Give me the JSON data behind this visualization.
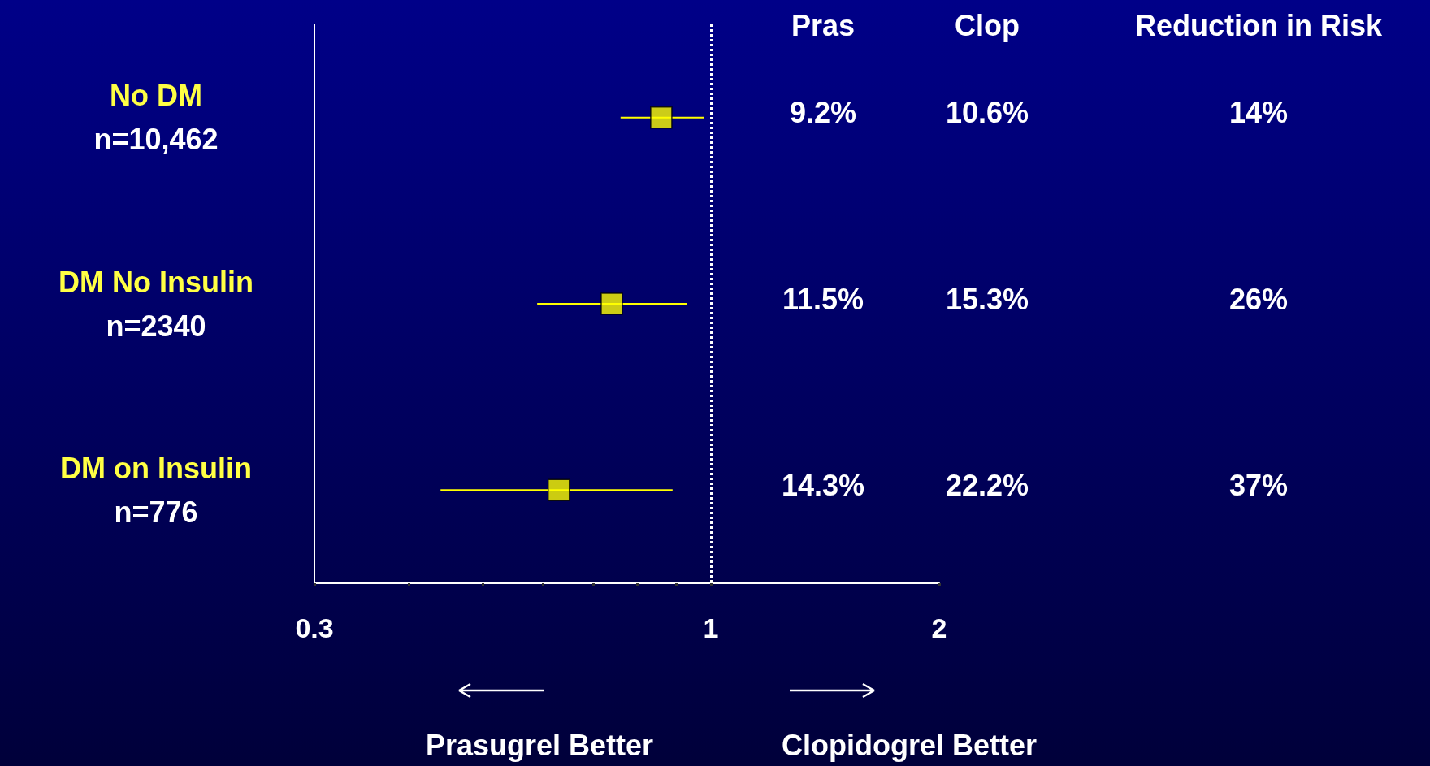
{
  "chart_data": {
    "type": "scatter",
    "categories": [
      "No DM\nn=10,462",
      "DM No Insulin\nn=2340",
      "DM on Insulin\nn=776"
    ],
    "series": [
      {
        "color": "#ffff00",
        "values": [
          0.86,
          0.74,
          0.63
        ],
        "errors": [
          [
            0.76,
            0.98
          ],
          [
            0.59,
            0.93
          ],
          [
            0.44,
            0.89
          ]
        ]
      }
    ],
    "orientation": "horizontal",
    "log": "x",
    "marker": "square",
    "grid": false,
    "xlim": [
      0.3,
      2
    ],
    "xticks": [
      0.3,
      {
        "value": 0.4,
        "label": null
      },
      {
        "value": 0.5,
        "label": null
      },
      {
        "value": 0.6,
        "label": null
      },
      {
        "value": 0.7,
        "label": null
      },
      {
        "value": 0.8,
        "label": null
      },
      {
        "value": 0.9,
        "label": null
      },
      1,
      2
    ],
    "ref_lines": [
      {
        "axis": "x",
        "value": 1,
        "color": "#ffffff",
        "line_style": "dotted"
      }
    ],
    "annotations": [
      "Pras",
      "Clop",
      "Reduction in Risk",
      "9.2%",
      "10.6%",
      "14%",
      "11.5%",
      "15.3%",
      "26%",
      "14.3%",
      "22.2%",
      "37%",
      "Prasugrel Better",
      "Clopidogrel Better"
    ]
  }
}
